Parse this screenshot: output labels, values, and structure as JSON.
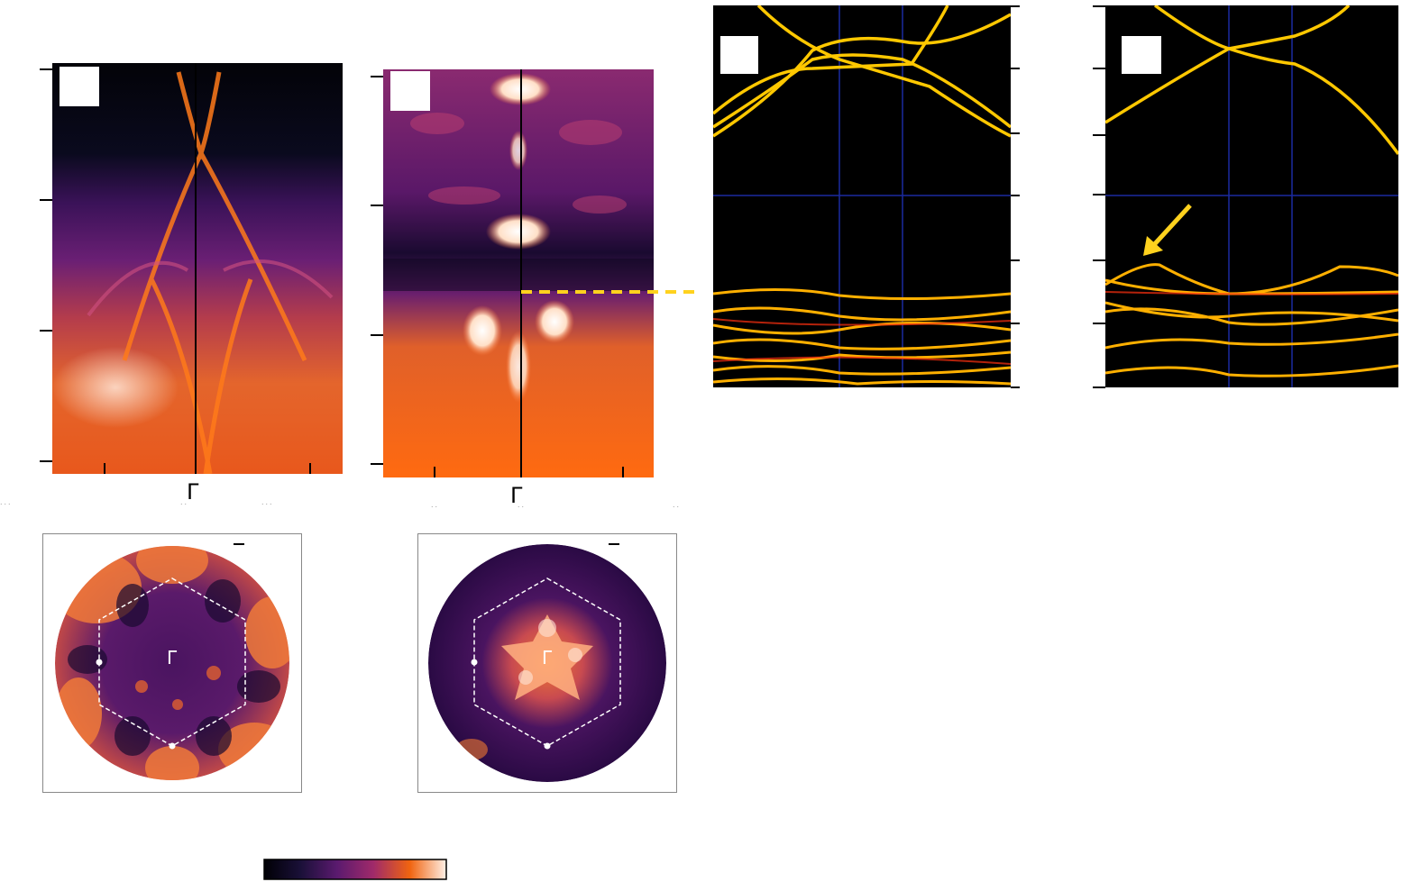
{
  "figure": {
    "panels": [
      {
        "id": "arpes-1",
        "kind": "arpes-spectrum"
      },
      {
        "id": "arpes-2",
        "kind": "arpes-second-derivative"
      },
      {
        "id": "calc-1",
        "kind": "band-structure"
      },
      {
        "id": "calc-2",
        "kind": "band-structure"
      },
      {
        "id": "fs-1",
        "kind": "constant-energy-map"
      },
      {
        "id": "fs-2",
        "kind": "constant-energy-map"
      }
    ],
    "symbols": {
      "gamma_arpes_1": "Γ",
      "gamma_arpes_2": "Γ",
      "gamma_fs_1": "Γ",
      "gamma_fs_2": "Γ"
    },
    "stray_labels": {
      "arpes1_left": "...",
      "arpes1_mid": "..",
      "arpes1_right": "...",
      "arpes2_left": "..",
      "arpes2_mid": "..",
      "arpes2_right": ".."
    },
    "colors": {
      "inferno_dark": "#000005",
      "inferno_purple": "#6a1c78",
      "inferno_orange": "#f06410",
      "inferno_light": "#fff0e6",
      "band_line": "#ffc800",
      "band_hot": "#ff3010",
      "grid_blue": "#1a2aa0",
      "dash_yellow": "#ffd21e",
      "arrow_yellow": "#ffd21e"
    },
    "colorbar": {
      "label": ""
    }
  }
}
